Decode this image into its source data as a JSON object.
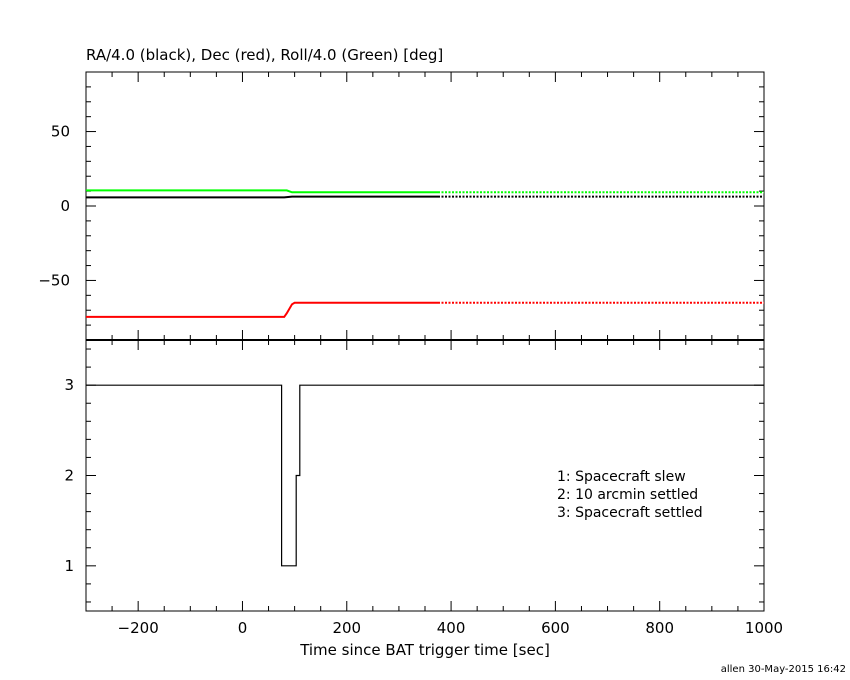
{
  "footer": {
    "credit": "allen 30-May-2015 16:42"
  },
  "chart_data": [
    {
      "type": "line",
      "title": "RA/4.0 (black), Dec (red), Roll/4.0 (Green) [deg]",
      "xlabel": "",
      "ylabel": "",
      "xlim": [
        -300,
        1000
      ],
      "ylim": [
        -90,
        90
      ],
      "yticks": [
        50,
        0,
        -50
      ],
      "ytick_labels": [
        "50",
        "0",
        "−50"
      ],
      "grid": false,
      "series": [
        {
          "color": "#000000",
          "solid": [
            [
              -300,
              5.8
            ],
            [
              80,
              5.8
            ],
            [
              95,
              6.3
            ],
            [
              375,
              6.3
            ]
          ],
          "dotted": [
            [
              375,
              6.3
            ],
            [
              1000,
              6.3
            ]
          ]
        },
        {
          "color": "#ff0000",
          "solid": [
            [
              -300,
              -74.5
            ],
            [
              80,
              -74.5
            ],
            [
              85,
              -72
            ],
            [
              95,
              -66
            ],
            [
              100,
              -65
            ],
            [
              375,
              -65
            ]
          ],
          "dotted": [
            [
              375,
              -65
            ],
            [
              1000,
              -65
            ]
          ]
        },
        {
          "color": "#00ff00",
          "solid": [
            [
              -300,
              10.5
            ],
            [
              85,
              10.5
            ],
            [
              95,
              9.2
            ],
            [
              375,
              9.2
            ]
          ],
          "dotted": [
            [
              375,
              9.2
            ],
            [
              1000,
              9.2
            ]
          ]
        }
      ]
    },
    {
      "type": "line",
      "title": "",
      "xlabel": "Time since BAT trigger time [sec]",
      "ylabel": "",
      "xlim": [
        -300,
        1000
      ],
      "ylim": [
        0.5,
        3.5
      ],
      "xticks": [
        -200,
        0,
        200,
        400,
        600,
        800,
        1000
      ],
      "xtick_labels": [
        "−200",
        "0",
        "200",
        "400",
        "600",
        "800",
        "1000"
      ],
      "yticks": [
        1,
        2,
        3
      ],
      "ytick_labels": [
        "1",
        "2",
        "3"
      ],
      "grid": false,
      "series": [
        {
          "color": "#000000",
          "step": [
            [
              -300,
              3
            ],
            [
              75,
              3
            ],
            [
              75,
              1
            ],
            [
              103,
              1
            ],
            [
              103,
              2
            ],
            [
              110,
              2
            ],
            [
              110,
              3
            ],
            [
              1000,
              3
            ]
          ]
        }
      ],
      "legend": [
        "1: Spacecraft slew",
        "2: 10 arcmin settled",
        "3: Spacecraft settled"
      ]
    }
  ]
}
